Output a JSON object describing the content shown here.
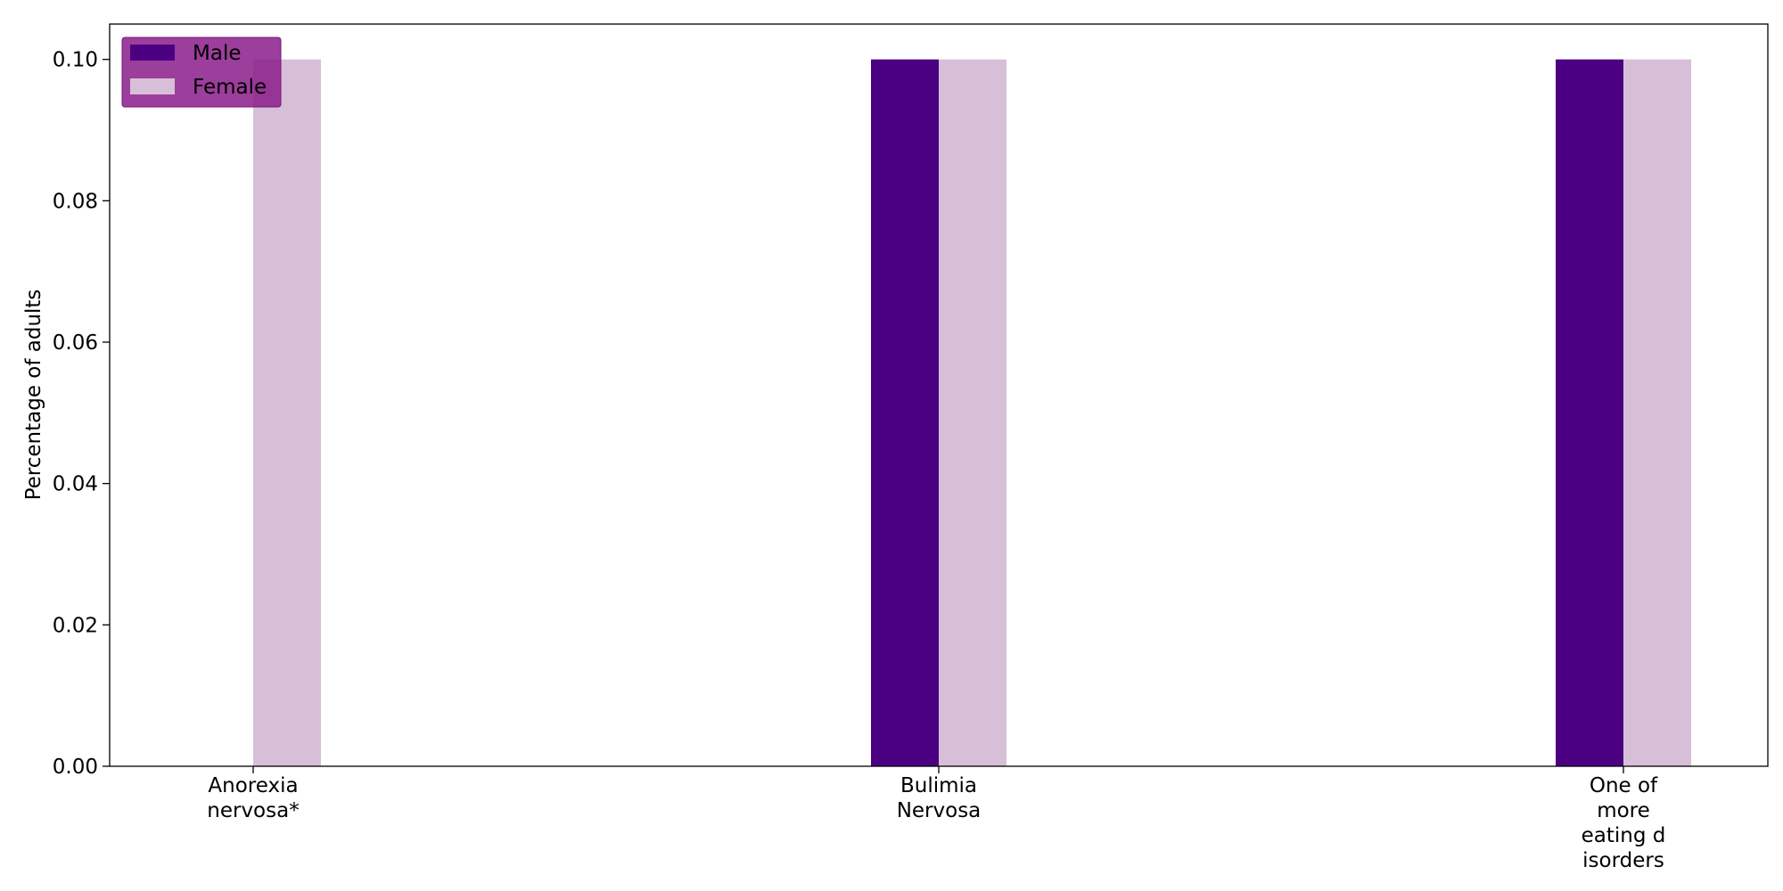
{
  "chart_data": {
    "type": "bar",
    "title": "",
    "xlabel": "",
    "ylabel": "Percentage of adults",
    "categories": [
      [
        "Anorexia",
        "nervosa*"
      ],
      [
        "Bulimia",
        "Nervosa"
      ],
      [
        "One of",
        "more",
        "eating d",
        "isorders"
      ]
    ],
    "series": [
      {
        "name": "Male",
        "color": "#4b0082",
        "values": [
          0.0,
          0.1,
          0.1
        ]
      },
      {
        "name": "Female",
        "color": "#d8bfd8",
        "values": [
          0.1,
          0.1,
          0.1
        ]
      }
    ],
    "ylim": [
      0,
      0.105
    ],
    "yticks": [
      "0.00",
      "0.02",
      "0.04",
      "0.06",
      "0.08",
      "0.10"
    ],
    "grid": false,
    "legend": {
      "position": "top-left",
      "background": "#8b1c8b"
    }
  }
}
